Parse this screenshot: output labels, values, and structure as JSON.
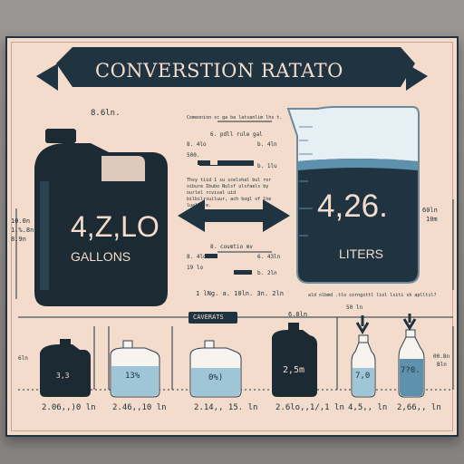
{
  "title": "CONVERSTION RATATO",
  "gallon_value": "4,Z,LO",
  "gallon_unit": "GALLONS",
  "liter_value": "4,26.",
  "liter_unit": "LITERS",
  "left_dim_top": "8.6ln.",
  "left_dim_side": [
    "10.0n",
    "1,%.8n",
    "8.9n"
  ],
  "right_dim_side": [
    "60ln",
    "10m"
  ],
  "center_heading": "Comeonion sc ga ba latsanlim lhs t.",
  "center_note_top": "Thsy tiid 1 su scelshal bul ror oibure Ibubo Nulsf ulsfaels by ourlel rcvisal uid bilbilrsuiluur, ach bogl of lhe luallure.",
  "center_row1": [
    "6. pdll rule gal",
    "8. 4lo",
    "b. 4ln",
    "500.",
    "b. 1lu"
  ],
  "center_row2": [
    "8. coumtio mv",
    "8. 4lo",
    "6. 43ln",
    "19 lo",
    "b. 2ln"
  ],
  "center_bottom": "1 lNg. a. 10ln. 3n. 2ln",
  "caveats_label": "CAVERATS",
  "right_note": "ald olbmd .tlo corngsttl liol lsiti sh aplltil?",
  "right_small_top": "6.8ln",
  "right_small_top2": "50 ln",
  "left_small_top": "6ln",
  "items": [
    {
      "label": "3,3",
      "caption": "2.06,,)0 ln"
    },
    {
      "label": "13%",
      "caption": "2.46,,10 ln"
    },
    {
      "label": "0%)",
      "caption": "2.14,, 15. ln"
    },
    {
      "label": "2,5m",
      "caption": "2.6lo,,1/,1 ln"
    },
    {
      "label": "7,0",
      "caption": "4,5,, ln"
    },
    {
      "label": "7?0.",
      "caption": "2,66,, ln"
    }
  ],
  "far_right_labels": [
    "00.8n",
    "Bln"
  ],
  "colors": {
    "navy": "#1f3440",
    "paper": "#f3dccb",
    "water": "#5d91ad",
    "light_water": "#9ec6d6"
  }
}
